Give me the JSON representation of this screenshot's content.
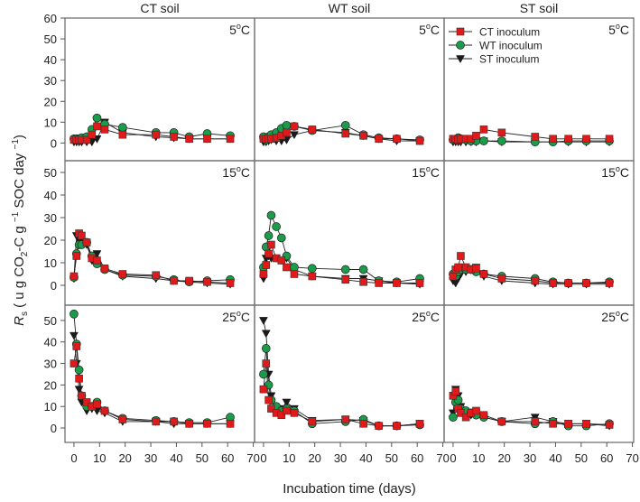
{
  "chart_data": {
    "type": "line",
    "xlabel": "Incubation time (days)",
    "ylabel": {
      "r": "R",
      "sub": "s",
      "p1": " ( u g CO",
      "sub2": "2",
      "p2": "-C g ",
      "sup1": "−1",
      "p3": " SOC day ",
      "sup2": "−1",
      "p4": ")"
    },
    "columns": [
      "CT soil",
      "WT soil",
      "ST soil"
    ],
    "rows": [
      "5°C",
      "15°C",
      "25°C"
    ],
    "temp_labels": [
      {
        "num": "5",
        "deg": "o",
        "unit": "C"
      },
      {
        "num": "15",
        "deg": "o",
        "unit": "C"
      },
      {
        "num": "25",
        "deg": "o",
        "unit": "C"
      }
    ],
    "xlim": [
      -3.5,
      70.5
    ],
    "xticks": [
      "0",
      "10",
      "20",
      "30",
      "40",
      "50",
      "60",
      "70"
    ],
    "row_ylims": [
      [
        -8.5,
        60
      ],
      [
        -8.8,
        55.2
      ],
      [
        -6.7,
        57.1
      ]
    ],
    "row_yticks": [
      [
        "0",
        "10",
        "20",
        "30",
        "40",
        "50",
        "60"
      ],
      [
        "0",
        "10",
        "20",
        "30",
        "40",
        "50"
      ],
      [
        "0",
        "10",
        "20",
        "30",
        "40",
        "50"
      ]
    ],
    "legend": {
      "placement": "top-left of ST soil 5°C panel",
      "entries": [
        "CT inoculum",
        "WT inoculum",
        "ST inoculum"
      ]
    },
    "series_styles": [
      {
        "name": "CT inoculum",
        "marker": "square",
        "color": "#e01a1a"
      },
      {
        "name": "WT inoculum",
        "marker": "circle",
        "color": "#1a9c4a"
      },
      {
        "name": "ST inoculum",
        "marker": "triangle-down",
        "color": "#1a1a1a"
      }
    ],
    "x": [
      0,
      1,
      2,
      3,
      5,
      7,
      9,
      12,
      19,
      32,
      39,
      45,
      52,
      61
    ],
    "panels": [
      {
        "soil": "CT soil",
        "temp": "5°C",
        "series": [
          [
            1.5,
            1.5,
            1.5,
            1.5,
            1.5,
            4,
            8,
            6.5,
            4,
            4,
            3,
            2,
            2,
            2
          ],
          [
            2,
            2,
            2,
            2.5,
            3,
            6.5,
            12,
            9,
            7.5,
            5,
            5,
            3,
            4.5,
            3.5
          ],
          [
            0.5,
            0.5,
            0.5,
            0.5,
            0.5,
            0.5,
            2,
            10,
            5,
            3,
            2.5,
            2,
            2,
            2
          ]
        ]
      },
      {
        "soil": "WT soil",
        "temp": "5°C",
        "series": [
          [
            2,
            2,
            2,
            2,
            2.5,
            3.5,
            5,
            8,
            6.5,
            4.5,
            3.5,
            2,
            2,
            1
          ],
          [
            3,
            1.5,
            3,
            4,
            5,
            7,
            8.5,
            8,
            6,
            8.5,
            4,
            2.5,
            2,
            1.5
          ],
          [
            0.5,
            0.5,
            1,
            1.5,
            1,
            1,
            1.5,
            4,
            6,
            5,
            3.5,
            2,
            1,
            1
          ]
        ]
      },
      {
        "soil": "ST soil",
        "temp": "5°C",
        "series": [
          [
            2,
            2,
            1.5,
            2,
            2,
            2,
            3.5,
            6.5,
            5,
            3,
            2,
            2,
            2,
            2
          ],
          [
            1.5,
            1.5,
            2.5,
            2,
            1.5,
            1,
            1,
            1,
            1,
            0.5,
            0.5,
            1,
            1,
            1
          ],
          [
            0.5,
            0.5,
            0.5,
            0.5,
            0.5,
            0.5,
            0.5,
            1,
            0.5,
            0.5,
            0.5,
            0.5,
            0.5,
            0.5
          ]
        ]
      },
      {
        "soil": "CT soil",
        "temp": "15°C",
        "series": [
          [
            4,
            13,
            23,
            22,
            19,
            12,
            11,
            7.5,
            5,
            4.5,
            2,
            2,
            1.5,
            1
          ],
          [
            3.5,
            14,
            18,
            18,
            19,
            13,
            9.5,
            7,
            4.5,
            4,
            2.5,
            1.5,
            2,
            2.5
          ],
          [
            3,
            22,
            20,
            19,
            18,
            11,
            14,
            7,
            4,
            3,
            2,
            1.5,
            1,
            0.5
          ]
        ]
      },
      {
        "soil": "WT soil",
        "temp": "15°C",
        "series": [
          [
            5,
            9,
            14,
            18,
            12,
            11,
            8,
            5,
            4,
            2.5,
            1.5,
            1,
            1,
            1
          ],
          [
            8,
            17,
            22,
            31,
            26,
            21,
            13,
            8,
            7.5,
            7,
            7,
            2,
            1.5,
            3
          ],
          [
            3,
            12,
            13,
            12,
            12,
            11,
            12,
            7,
            4,
            3,
            3,
            2,
            1,
            0.5
          ]
        ]
      },
      {
        "soil": "ST soil",
        "temp": "15°C",
        "series": [
          [
            4,
            7,
            8,
            13,
            8,
            7,
            7.5,
            5,
            3,
            2,
            1,
            1,
            1,
            1
          ],
          [
            5,
            4,
            6,
            7,
            7,
            7,
            6,
            5,
            4,
            3,
            1.5,
            1,
            1,
            1.5
          ],
          [
            2,
            1,
            3,
            5,
            6,
            7,
            8,
            4,
            2,
            1,
            0.5,
            0.5,
            0.5,
            0.5
          ]
        ]
      },
      {
        "soil": "CT soil",
        "temp": "25°C",
        "series": [
          [
            30,
            38,
            23,
            15,
            12,
            10,
            11,
            8,
            4,
            3,
            3,
            2,
            2,
            2
          ],
          [
            53,
            39,
            27,
            15,
            10,
            10,
            12,
            8,
            4.5,
            3.5,
            3,
            2.5,
            2.5,
            5
          ],
          [
            43,
            30,
            18,
            12,
            8,
            9,
            8,
            7,
            3,
            3,
            2,
            2,
            2,
            2
          ]
        ]
      },
      {
        "soil": "WT soil",
        "temp": "25°C",
        "series": [
          [
            18,
            30,
            13,
            9,
            7,
            6,
            8,
            7,
            3,
            4,
            2,
            1,
            1,
            2
          ],
          [
            25,
            37,
            20,
            13,
            10,
            8,
            9,
            8,
            2,
            3,
            4,
            1,
            1,
            1.5
          ],
          [
            50,
            44,
            25,
            15,
            9,
            9,
            12,
            9,
            3.5,
            4,
            3.5,
            1,
            1,
            2
          ]
        ]
      },
      {
        "soil": "ST soil",
        "temp": "25°C",
        "series": [
          [
            15,
            17,
            9,
            7,
            5,
            7,
            8,
            6,
            3,
            3,
            2,
            2,
            2,
            1.5
          ],
          [
            5,
            12,
            13,
            9,
            8,
            7,
            6,
            5,
            3,
            2,
            3,
            1,
            1,
            2
          ],
          [
            7,
            18,
            15,
            10,
            7,
            6,
            7,
            5,
            3,
            5,
            3,
            2,
            2,
            1
          ]
        ]
      }
    ]
  }
}
